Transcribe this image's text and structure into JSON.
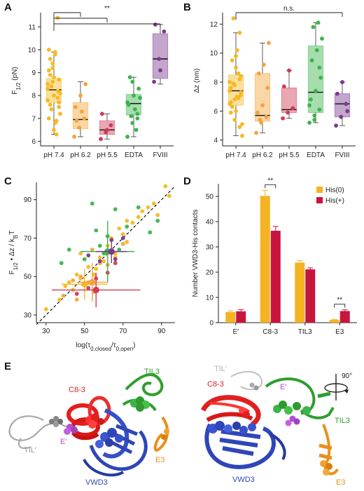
{
  "panels": {
    "a": "A",
    "b": "B",
    "c": "C",
    "d": "D",
    "e": "E"
  },
  "colors": {
    "ph74": "#f6b923",
    "ph62": "#f4a43c",
    "ph55": "#d13a55",
    "edta": "#3cb44b",
    "fviii": "#7b3a8f",
    "his0": "#f5b323",
    "hisplus": "#c8153d",
    "e_prime": "#b34fd0",
    "c83": "#e02020",
    "til3": "#2e9e2e",
    "vwd3": "#2f46b8",
    "e3": "#e8901c",
    "til_prime": "#b0b0b0"
  },
  "chart_data": [
    {
      "id": "A",
      "type": "box",
      "ylabel_main": "F",
      "ylabel_sub": "1/2",
      "ylabel_unit": " (pN)",
      "ylim": [
        5.8,
        11.5
      ],
      "yticks": [
        "6",
        "7",
        "8",
        "9",
        "10",
        "11"
      ],
      "categories": [
        "pH 7.4",
        "pH 6.2",
        "pH 5.5",
        "EDTA",
        "FVIII"
      ],
      "boxes": [
        {
          "q1": 7.7,
          "median": 8.25,
          "q3": 8.75,
          "lo": 6.3,
          "hi": 9.9
        },
        {
          "q1": 6.55,
          "median": 6.95,
          "q3": 7.7,
          "lo": 6.2,
          "hi": 8.6
        },
        {
          "q1": 6.3,
          "median": 6.5,
          "q3": 6.9,
          "lo": 6.1,
          "hi": 7.2
        },
        {
          "q1": 7.15,
          "median": 7.65,
          "q3": 8.05,
          "lo": 6.2,
          "hi": 8.8
        },
        {
          "q1": 8.75,
          "median": 9.6,
          "q3": 10.7,
          "lo": 8.5,
          "hi": 11.1
        }
      ],
      "points": [
        [
          8.3,
          8.6,
          7.9,
          9.1,
          8.0,
          7.5,
          8.9,
          9.8,
          7.2,
          8.4,
          6.9,
          7.8,
          9.4,
          8.2,
          10.0,
          6.5,
          8.7,
          7.6,
          9.9,
          8.1,
          7.4,
          6.3,
          8.5,
          9.2,
          11.4,
          7.0,
          8.8,
          7.7,
          9.6,
          6.8
        ],
        [
          6.2,
          6.6,
          7.0,
          7.5,
          8.0,
          8.5,
          6.9,
          7.3
        ],
        [
          6.1,
          6.4,
          6.7,
          7.2,
          6.5
        ],
        [
          6.2,
          6.8,
          7.2,
          7.6,
          8.0,
          8.3,
          8.8,
          7.4,
          7.9,
          7.1,
          6.5,
          7.7,
          8.6,
          7.0
        ],
        [
          8.6,
          9.6,
          10.8,
          11.1,
          9.1
        ]
      ],
      "significance": {
        "label": "**",
        "from": 0,
        "to": [
          1,
          2,
          4
        ]
      }
    },
    {
      "id": "B",
      "type": "box",
      "ylabel_main": "Δz",
      "ylabel_sub": "",
      "ylabel_unit": " (nm)",
      "ylim": [
        3.6,
        12.6
      ],
      "yticks": [
        "4",
        "6",
        "8",
        "10",
        "12"
      ],
      "categories": [
        "pH 7.4",
        "pH 6.2",
        "pH 5.5",
        "EDTA",
        "FVIII"
      ],
      "boxes": [
        {
          "q1": 6.4,
          "median": 7.4,
          "q3": 8.5,
          "lo": 4.3,
          "hi": 11.4
        },
        {
          "q1": 5.3,
          "median": 5.7,
          "q3": 8.6,
          "lo": 4.5,
          "hi": 10.7
        },
        {
          "q1": 5.9,
          "median": 6.1,
          "q3": 7.6,
          "lo": 5.5,
          "hi": 8.8
        },
        {
          "q1": 5.9,
          "median": 7.3,
          "q3": 10.5,
          "lo": 5.2,
          "hi": 12.1
        },
        {
          "q1": 5.6,
          "median": 6.5,
          "q3": 7.2,
          "lo": 5.0,
          "hi": 8.0
        }
      ],
      "points": [
        [
          7.4,
          6.8,
          8.2,
          5.9,
          9.0,
          7.1,
          6.3,
          10.2,
          4.3,
          7.9,
          8.6,
          6.5,
          5.4,
          11.4,
          7.6,
          6.0,
          8.4,
          9.5,
          7.0,
          5.1,
          12.4,
          6.9,
          8.0,
          7.8,
          4.9,
          6.6,
          9.8,
          7.3
        ],
        [
          4.5,
          5.2,
          5.6,
          5.9,
          6.4,
          7.6,
          8.6,
          9.2,
          10.7,
          5.4
        ],
        [
          5.5,
          5.9,
          6.2,
          7.7,
          8.8
        ],
        [
          5.2,
          5.7,
          6.1,
          6.8,
          7.4,
          8.3,
          9.5,
          10.2,
          11.0,
          11.8,
          12.1,
          6.4,
          5.4,
          9.0
        ],
        [
          5.0,
          5.6,
          6.5,
          7.2,
          8.0,
          6.0
        ]
      ],
      "significance": {
        "label": "n.s.",
        "from": 0,
        "to": [
          4
        ]
      }
    },
    {
      "id": "C",
      "type": "scatter",
      "xlabel_main": "log(τ",
      "xlabel_sub1": "0,closed",
      "xlabel_mid": "/τ",
      "xlabel_sub2": "0,open",
      "xlabel_end": ")",
      "ylabel_main": "F",
      "ylabel_sub1": "1/2",
      "ylabel_mid": " • Δz / k",
      "ylabel_sub2": "B",
      "ylabel_end": "T",
      "xlim": [
        25,
        97
      ],
      "ylim": [
        26,
        99
      ],
      "xticks": [
        "30",
        "50",
        "70",
        "90"
      ],
      "yticks": [
        "30",
        "50",
        "70",
        "90"
      ],
      "diagonal": [
        [
          25,
          25
        ],
        [
          97,
          97
        ]
      ],
      "series": [
        {
          "color_key": "ph74",
          "points": [
            [
              30,
              33
            ],
            [
              37,
              38
            ],
            [
              40,
              45
            ],
            [
              42,
              47
            ],
            [
              44,
              43
            ],
            [
              46,
              51
            ],
            [
              48,
              49
            ],
            [
              50,
              46
            ],
            [
              52,
              55
            ],
            [
              55,
              51
            ],
            [
              58,
              60
            ],
            [
              60,
              58
            ],
            [
              62,
              66
            ],
            [
              64,
              70
            ],
            [
              66,
              62
            ],
            [
              68,
              75
            ],
            [
              70,
              72
            ],
            [
              72,
              79
            ],
            [
              75,
              78
            ],
            [
              78,
              81
            ],
            [
              80,
              84
            ],
            [
              83,
              86
            ],
            [
              86,
              88
            ],
            [
              88,
              82
            ],
            [
              92,
              97
            ],
            [
              94,
              92
            ],
            [
              56,
              54
            ],
            [
              66,
              60
            ],
            [
              48,
              62
            ],
            [
              72,
              68
            ]
          ]
        },
        {
          "color_key": "ph62",
          "points": [
            [
              39,
              40
            ],
            [
              44,
              48
            ],
            [
              48,
              50
            ],
            [
              52,
              47
            ],
            [
              55,
              42
            ],
            [
              58,
              57
            ],
            [
              62,
              56
            ],
            [
              70,
              67
            ],
            [
              46,
              38
            ],
            [
              54,
              64
            ]
          ]
        },
        {
          "color_key": "ph55",
          "points": [
            [
              46,
              41
            ],
            [
              52,
              44
            ],
            [
              56,
              49
            ],
            [
              62,
              52
            ],
            [
              66,
              57
            ]
          ]
        },
        {
          "color_key": "edta",
          "points": [
            [
              38,
              57
            ],
            [
              42,
              64
            ],
            [
              50,
              59
            ],
            [
              54,
              88
            ],
            [
              56,
              74
            ],
            [
              58,
              66
            ],
            [
              62,
              71
            ],
            [
              66,
              85
            ],
            [
              68,
              64
            ],
            [
              72,
              76
            ],
            [
              78,
              86
            ],
            [
              84,
              73
            ],
            [
              88,
              79
            ],
            [
              60,
              62
            ]
          ]
        },
        {
          "color_key": "fviii",
          "points": [
            [
              52,
              61
            ],
            [
              58,
              58
            ],
            [
              64,
              69
            ],
            [
              66,
              59
            ],
            [
              70,
              70
            ]
          ]
        }
      ],
      "means": [
        {
          "color_key": "ph74",
          "x": 50,
          "y": 46,
          "xerr": 12,
          "yerr": 8
        },
        {
          "color_key": "ph62",
          "x": 54,
          "y": 47,
          "xerr": 8,
          "yerr": 10
        },
        {
          "color_key": "ph55",
          "x": 56,
          "y": 43,
          "xerr": 23,
          "yerr": 9
        },
        {
          "color_key": "edta",
          "x": 62,
          "y": 63,
          "xerr": 14,
          "yerr": 16
        },
        {
          "color_key": "fviii",
          "x": 64,
          "y": 63,
          "xerr": 8,
          "yerr": 6
        }
      ]
    },
    {
      "id": "D",
      "type": "bar",
      "ylabel": "Number VWD3-His contacts",
      "ylim": [
        0,
        55
      ],
      "yticks": [
        "0",
        "10",
        "20",
        "30",
        "40",
        "50"
      ],
      "categories": [
        "E′",
        "C8-3",
        "TIL3",
        "E3"
      ],
      "series": [
        {
          "name": "His(0)",
          "color_key": "his0",
          "values": [
            4.2,
            50.2,
            23.8,
            1.1
          ],
          "errors": [
            0.5,
            2.2,
            0.8,
            0.2
          ]
        },
        {
          "name": "His(+)",
          "color_key": "hisplus",
          "values": [
            4.5,
            36.4,
            21.1,
            4.6
          ],
          "errors": [
            0.7,
            1.7,
            0.6,
            0.5
          ]
        }
      ],
      "significance": [
        {
          "label": "**",
          "category": 1
        },
        {
          "label": "**",
          "category": 3
        }
      ],
      "legend_position": "top-right"
    }
  ],
  "structure_labels": {
    "left": {
      "c83": "C8-3",
      "til3": "TIL3",
      "til_prime": "TIL′",
      "e_prime": "E′",
      "vwd3": "VWD3",
      "e3": "E3"
    },
    "right": {
      "c83": "C8-3",
      "til3": "TIL3",
      "til_prime": "TIL′",
      "e_prime": "E′",
      "vwd3": "VWD3",
      "e3": "E3",
      "rotation": "90°"
    }
  }
}
